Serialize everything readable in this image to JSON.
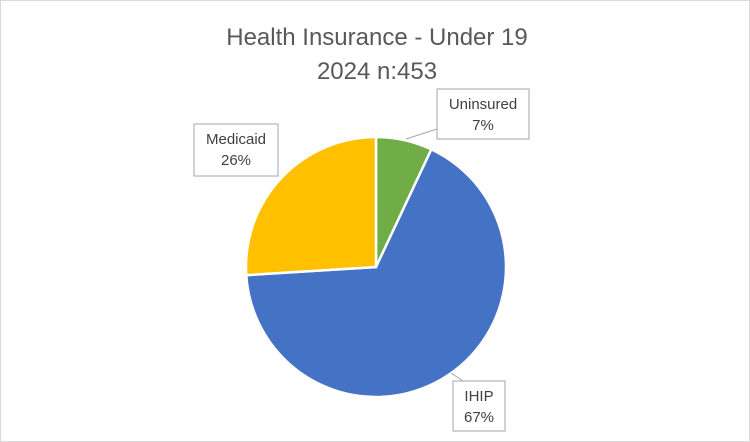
{
  "chart_data": {
    "type": "pie",
    "title": "Health Insurance - Under 19",
    "subtitle": "2024 n:453",
    "slices": [
      {
        "label": "Uninsured",
        "value": 7,
        "value_label": "7%",
        "color": "#70AD47"
      },
      {
        "label": "IHIP",
        "value": 67,
        "value_label": "67%",
        "color": "#4472C4"
      },
      {
        "label": "Medicaid",
        "value": 26,
        "value_label": "26%",
        "color": "#FFC000"
      }
    ],
    "start_angle": "12 o'clock, clockwise",
    "legend": "none",
    "data_labels": "callouts"
  }
}
